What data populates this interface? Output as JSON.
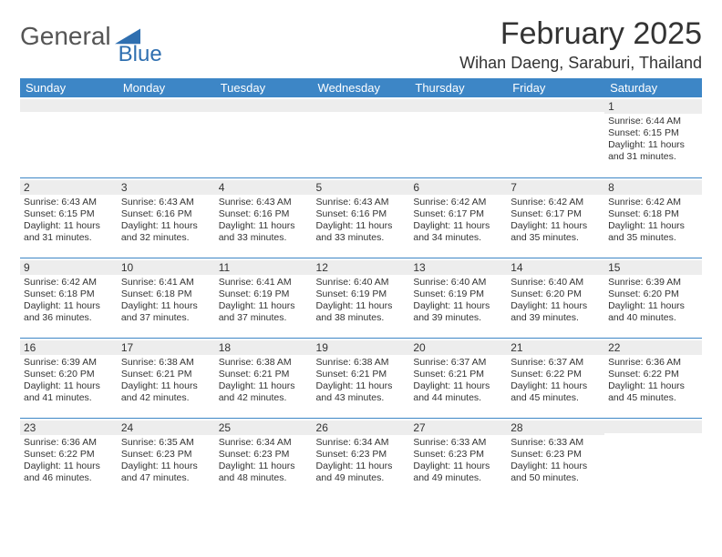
{
  "logo": {
    "word1": "General",
    "word2": "Blue"
  },
  "header": {
    "month_title": "February 2025",
    "location": "Wihan Daeng, Saraburi, Thailand"
  },
  "colors": {
    "header_bg": "#3d86c6",
    "header_text": "#ffffff",
    "row_stripe": "#ededed",
    "border": "#3d86c6",
    "logo_blue": "#2f6fb0",
    "text": "#333333"
  },
  "weekdays": [
    "Sunday",
    "Monday",
    "Tuesday",
    "Wednesday",
    "Thursday",
    "Friday",
    "Saturday"
  ],
  "weeks": [
    [
      {
        "n": "",
        "lines": []
      },
      {
        "n": "",
        "lines": []
      },
      {
        "n": "",
        "lines": []
      },
      {
        "n": "",
        "lines": []
      },
      {
        "n": "",
        "lines": []
      },
      {
        "n": "",
        "lines": []
      },
      {
        "n": "1",
        "lines": [
          "Sunrise: 6:44 AM",
          "Sunset: 6:15 PM",
          "Daylight: 11 hours and 31 minutes."
        ]
      }
    ],
    [
      {
        "n": "2",
        "lines": [
          "Sunrise: 6:43 AM",
          "Sunset: 6:15 PM",
          "Daylight: 11 hours and 31 minutes."
        ]
      },
      {
        "n": "3",
        "lines": [
          "Sunrise: 6:43 AM",
          "Sunset: 6:16 PM",
          "Daylight: 11 hours and 32 minutes."
        ]
      },
      {
        "n": "4",
        "lines": [
          "Sunrise: 6:43 AM",
          "Sunset: 6:16 PM",
          "Daylight: 11 hours and 33 minutes."
        ]
      },
      {
        "n": "5",
        "lines": [
          "Sunrise: 6:43 AM",
          "Sunset: 6:16 PM",
          "Daylight: 11 hours and 33 minutes."
        ]
      },
      {
        "n": "6",
        "lines": [
          "Sunrise: 6:42 AM",
          "Sunset: 6:17 PM",
          "Daylight: 11 hours and 34 minutes."
        ]
      },
      {
        "n": "7",
        "lines": [
          "Sunrise: 6:42 AM",
          "Sunset: 6:17 PM",
          "Daylight: 11 hours and 35 minutes."
        ]
      },
      {
        "n": "8",
        "lines": [
          "Sunrise: 6:42 AM",
          "Sunset: 6:18 PM",
          "Daylight: 11 hours and 35 minutes."
        ]
      }
    ],
    [
      {
        "n": "9",
        "lines": [
          "Sunrise: 6:42 AM",
          "Sunset: 6:18 PM",
          "Daylight: 11 hours and 36 minutes."
        ]
      },
      {
        "n": "10",
        "lines": [
          "Sunrise: 6:41 AM",
          "Sunset: 6:18 PM",
          "Daylight: 11 hours and 37 minutes."
        ]
      },
      {
        "n": "11",
        "lines": [
          "Sunrise: 6:41 AM",
          "Sunset: 6:19 PM",
          "Daylight: 11 hours and 37 minutes."
        ]
      },
      {
        "n": "12",
        "lines": [
          "Sunrise: 6:40 AM",
          "Sunset: 6:19 PM",
          "Daylight: 11 hours and 38 minutes."
        ]
      },
      {
        "n": "13",
        "lines": [
          "Sunrise: 6:40 AM",
          "Sunset: 6:19 PM",
          "Daylight: 11 hours and 39 minutes."
        ]
      },
      {
        "n": "14",
        "lines": [
          "Sunrise: 6:40 AM",
          "Sunset: 6:20 PM",
          "Daylight: 11 hours and 39 minutes."
        ]
      },
      {
        "n": "15",
        "lines": [
          "Sunrise: 6:39 AM",
          "Sunset: 6:20 PM",
          "Daylight: 11 hours and 40 minutes."
        ]
      }
    ],
    [
      {
        "n": "16",
        "lines": [
          "Sunrise: 6:39 AM",
          "Sunset: 6:20 PM",
          "Daylight: 11 hours and 41 minutes."
        ]
      },
      {
        "n": "17",
        "lines": [
          "Sunrise: 6:38 AM",
          "Sunset: 6:21 PM",
          "Daylight: 11 hours and 42 minutes."
        ]
      },
      {
        "n": "18",
        "lines": [
          "Sunrise: 6:38 AM",
          "Sunset: 6:21 PM",
          "Daylight: 11 hours and 42 minutes."
        ]
      },
      {
        "n": "19",
        "lines": [
          "Sunrise: 6:38 AM",
          "Sunset: 6:21 PM",
          "Daylight: 11 hours and 43 minutes."
        ]
      },
      {
        "n": "20",
        "lines": [
          "Sunrise: 6:37 AM",
          "Sunset: 6:21 PM",
          "Daylight: 11 hours and 44 minutes."
        ]
      },
      {
        "n": "21",
        "lines": [
          "Sunrise: 6:37 AM",
          "Sunset: 6:22 PM",
          "Daylight: 11 hours and 45 minutes."
        ]
      },
      {
        "n": "22",
        "lines": [
          "Sunrise: 6:36 AM",
          "Sunset: 6:22 PM",
          "Daylight: 11 hours and 45 minutes."
        ]
      }
    ],
    [
      {
        "n": "23",
        "lines": [
          "Sunrise: 6:36 AM",
          "Sunset: 6:22 PM",
          "Daylight: 11 hours and 46 minutes."
        ]
      },
      {
        "n": "24",
        "lines": [
          "Sunrise: 6:35 AM",
          "Sunset: 6:23 PM",
          "Daylight: 11 hours and 47 minutes."
        ]
      },
      {
        "n": "25",
        "lines": [
          "Sunrise: 6:34 AM",
          "Sunset: 6:23 PM",
          "Daylight: 11 hours and 48 minutes."
        ]
      },
      {
        "n": "26",
        "lines": [
          "Sunrise: 6:34 AM",
          "Sunset: 6:23 PM",
          "Daylight: 11 hours and 49 minutes."
        ]
      },
      {
        "n": "27",
        "lines": [
          "Sunrise: 6:33 AM",
          "Sunset: 6:23 PM",
          "Daylight: 11 hours and 49 minutes."
        ]
      },
      {
        "n": "28",
        "lines": [
          "Sunrise: 6:33 AM",
          "Sunset: 6:23 PM",
          "Daylight: 11 hours and 50 minutes."
        ]
      },
      {
        "n": "",
        "lines": []
      }
    ]
  ]
}
